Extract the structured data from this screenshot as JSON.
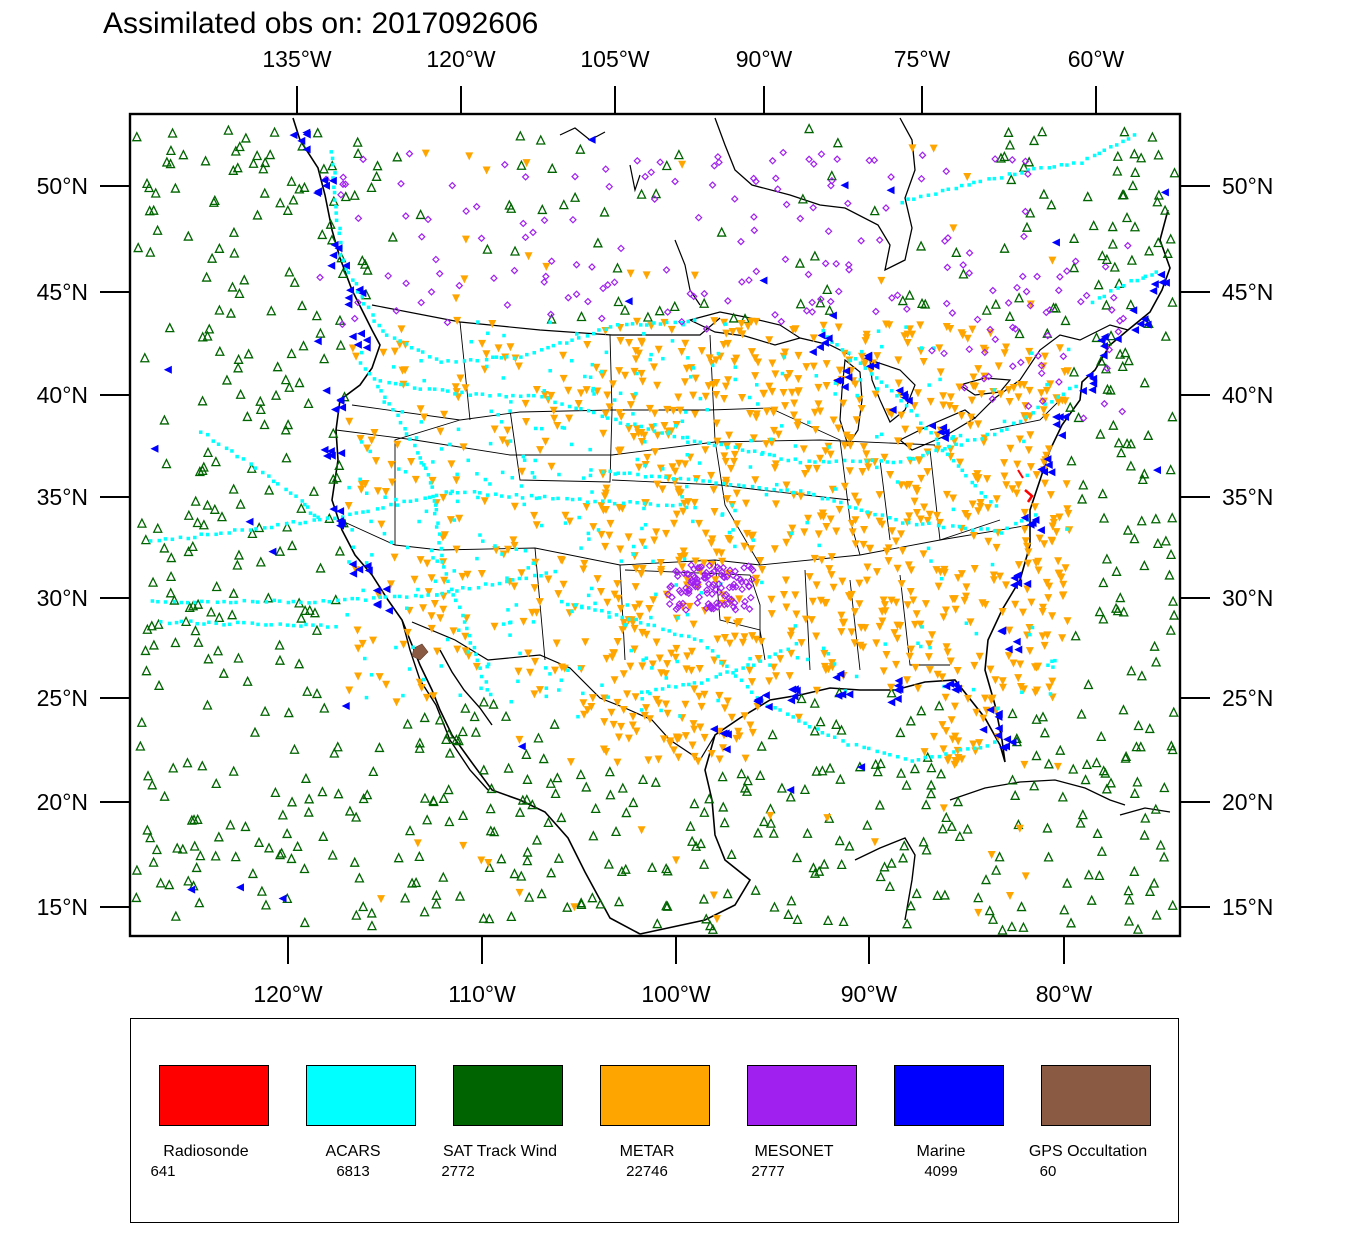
{
  "title": "Assimilated obs on: 2017092606",
  "top_axis": {
    "labels": [
      "135°W",
      "120°W",
      "105°W",
      "90°W",
      "75°W",
      "60°W"
    ]
  },
  "bottom_axis": {
    "labels": [
      "120°W",
      "110°W",
      "100°W",
      "90°W",
      "80°W"
    ]
  },
  "left_axis": {
    "labels": [
      "50°N",
      "45°N",
      "40°N",
      "35°N",
      "30°N",
      "25°N",
      "20°N",
      "15°N"
    ]
  },
  "right_axis": {
    "labels": [
      "50°N",
      "45°N",
      "40°N",
      "35°N",
      "30°N",
      "25°N",
      "20°N",
      "15°N"
    ]
  },
  "legend": [
    {
      "name": "Radiosonde",
      "count": "641",
      "color": "#ff0000"
    },
    {
      "name": "ACARS",
      "count": "6813",
      "color": "#00ffff"
    },
    {
      "name": "SAT Track Wind",
      "count": "2772",
      "color": "#006400"
    },
    {
      "name": "METAR",
      "count": "22746",
      "color": "#ffa500"
    },
    {
      "name": "MESONET",
      "count": "2777",
      "color": "#a020f0"
    },
    {
      "name": "Marine",
      "count": "4099",
      "color": "#0000ff"
    },
    {
      "name": "GPS Occultation",
      "count": "60",
      "color": "#8b5a43"
    }
  ],
  "chart_data": {
    "type": "scatter",
    "title": "Assimilated obs on: 2017092606",
    "projection": "Lambert conformal, CONUS",
    "x_extent_lon": [
      -127,
      -74
    ],
    "y_extent_lat": [
      14,
      52
    ],
    "series": [
      {
        "name": "Radiosonde",
        "count": 641,
        "marker": "dot",
        "color": "#ff0000"
      },
      {
        "name": "ACARS",
        "count": 6813,
        "marker": "square",
        "color": "#00ffff"
      },
      {
        "name": "SAT Track Wind",
        "count": 2772,
        "marker": "triangle-up",
        "color": "#006400"
      },
      {
        "name": "METAR",
        "count": 22746,
        "marker": "triangle-down",
        "color": "#ffa500"
      },
      {
        "name": "MESONET",
        "count": 2777,
        "marker": "diamond",
        "color": "#a020f0"
      },
      {
        "name": "Marine",
        "count": 4099,
        "marker": "triangle-left",
        "color": "#0000ff"
      },
      {
        "name": "GPS Occultation",
        "count": 60,
        "marker": "blob",
        "color": "#8b5a43"
      }
    ]
  }
}
